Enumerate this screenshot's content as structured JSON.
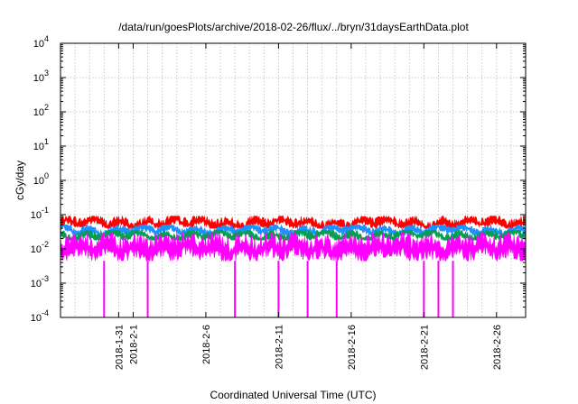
{
  "chart_data": {
    "type": "area",
    "title": "/data/run/goesPlots/archive/2018-02-26/flux/../bryn/31daysEarthData.plot",
    "xlabel": "Coordinated Universal Time (UTC)",
    "ylabel": "cGy/day",
    "yscale": "log",
    "ylim": [
      0.0001,
      10000
    ],
    "xlim": [
      "2018-01-27",
      "2018-02-28"
    ],
    "grid": true,
    "legend": "none",
    "y_ticks": [
      {
        "base": "10",
        "exp": "-4",
        "value": 0.0001
      },
      {
        "base": "10",
        "exp": "-3",
        "value": 0.001
      },
      {
        "base": "10",
        "exp": "-2",
        "value": 0.01
      },
      {
        "base": "10",
        "exp": "-1",
        "value": 0.1
      },
      {
        "base": "10",
        "exp": "0",
        "value": 1
      },
      {
        "base": "10",
        "exp": "1",
        "value": 10
      },
      {
        "base": "10",
        "exp": "2",
        "value": 100
      },
      {
        "base": "10",
        "exp": "3",
        "value": 1000
      },
      {
        "base": "10",
        "exp": "4",
        "value": 10000
      }
    ],
    "x_ticks": [
      {
        "label": "2018-1-31",
        "day": 31
      },
      {
        "label": "2018-2-1",
        "day": 32
      },
      {
        "label": "2018-2-6",
        "day": 37
      },
      {
        "label": "2018-2-11",
        "day": 42
      },
      {
        "label": "2018-2-16",
        "day": 47
      },
      {
        "label": "2018-2-21",
        "day": 52
      },
      {
        "label": "2018-2-26",
        "day": 57
      }
    ],
    "series": [
      {
        "color": "#ff0000",
        "typical": 0.055,
        "range": [
          0.04,
          0.09
        ]
      },
      {
        "color": "#1e90ff",
        "typical": 0.035,
        "range": [
          0.025,
          0.05
        ]
      },
      {
        "color": "#00a050",
        "typical": 0.025,
        "range": [
          0.018,
          0.035
        ]
      },
      {
        "color": "#ff00ff",
        "typical": 0.01,
        "range": [
          0.0045,
          0.03
        ]
      }
    ],
    "dropouts": [
      {
        "date": "2018-01-30",
        "value": 0.0001
      },
      {
        "date": "2018-02-02",
        "value": 0.0001
      },
      {
        "date": "2018-02-08",
        "value": 0.0001
      },
      {
        "date": "2018-02-11",
        "value": 0.0001
      },
      {
        "date": "2018-02-13",
        "value": 0.0001
      },
      {
        "date": "2018-02-15",
        "value": 0.0001
      },
      {
        "date": "2018-02-21",
        "value": 0.0001
      },
      {
        "date": "2018-02-22",
        "value": 0.0001
      },
      {
        "date": "2018-02-23",
        "value": 0.0001
      }
    ]
  }
}
